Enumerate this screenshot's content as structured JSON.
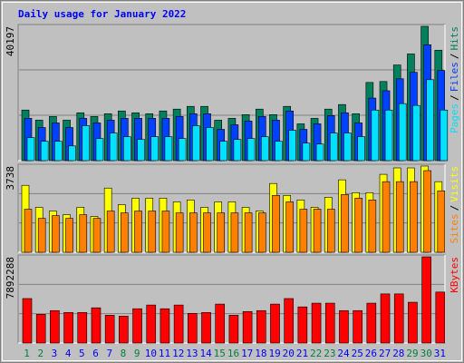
{
  "chart_data": [
    {
      "type": "bar",
      "title": "Daily usage for January 2022",
      "title_color": "#0000ff",
      "ylim": [
        0,
        40197
      ],
      "yticks": [
        40197
      ],
      "legend_separator": "/",
      "series": [
        {
          "name": "Pages",
          "color": "#00e0ff",
          "values": [
            6880,
            5780,
            5780,
            4400,
            10460,
            6610,
            8260,
            7160,
            6330,
            7160,
            7160,
            6610,
            10460,
            9910,
            5780,
            6330,
            6610,
            7160,
            5780,
            9080,
            5230,
            4960,
            8260,
            8260,
            7160,
            15140,
            15140,
            17070,
            16520,
            24230,
            15140
          ]
        },
        {
          "name": "Files",
          "color": "#0040ff",
          "values": [
            12660,
            9910,
            11290,
            9910,
            12660,
            11290,
            12110,
            12660,
            12660,
            12660,
            12660,
            13210,
            14040,
            14040,
            9360,
            10740,
            11840,
            13210,
            12110,
            14870,
            9360,
            11010,
            13490,
            14320,
            11290,
            18720,
            20920,
            24500,
            26430,
            34690,
            26980
          ]
        },
        {
          "name": "Hits",
          "color": "#00805c",
          "values": [
            15140,
            12110,
            13210,
            12110,
            14320,
            13210,
            14040,
            14870,
            14320,
            14040,
            14870,
            15420,
            16240,
            16240,
            12110,
            12660,
            13770,
            15420,
            13770,
            16240,
            11010,
            12660,
            15420,
            16790,
            14040,
            23400,
            23680,
            28630,
            31930,
            40197,
            33040
          ]
        }
      ]
    },
    {
      "type": "bar",
      "ylim": [
        0,
        3738
      ],
      "yticks": [
        3738
      ],
      "legend_separator": "/",
      "series": [
        {
          "name": "Sites",
          "color": "#ff8000",
          "values": [
            1869,
            1471,
            1591,
            1471,
            1631,
            1471,
            1790,
            1710,
            1790,
            1790,
            1790,
            1710,
            1710,
            1710,
            1710,
            1710,
            1710,
            1710,
            2466,
            2187,
            1869,
            1869,
            1869,
            2505,
            2346,
            2267,
            3062,
            3062,
            3062,
            3540,
            2665
          ]
        },
        {
          "name": "Visits",
          "color": "#ffff00",
          "values": [
            2903,
            1949,
            1790,
            1631,
            1949,
            1551,
            2784,
            2068,
            2346,
            2346,
            2346,
            2187,
            2267,
            1949,
            2187,
            2187,
            1949,
            1790,
            2983,
            2466,
            2267,
            1949,
            2386,
            3142,
            2585,
            2585,
            3380,
            3659,
            3659,
            3738,
            3062
          ]
        }
      ]
    },
    {
      "type": "bar",
      "ylim": [
        0,
        7892288
      ],
      "yticks": [
        7892288
      ],
      "categories": [
        "1",
        "2",
        "3",
        "4",
        "5",
        "6",
        "7",
        "8",
        "9",
        "10",
        "11",
        "12",
        "13",
        "14",
        "15",
        "16",
        "17",
        "18",
        "19",
        "20",
        "21",
        "22",
        "23",
        "24",
        "25",
        "26",
        "27",
        "28",
        "29",
        "30",
        "31"
      ],
      "category_color": "#0000ff",
      "weekend_color": "#008040",
      "weekend_indices": [
        0,
        1,
        7,
        8,
        14,
        15,
        21,
        22,
        28,
        29
      ],
      "series": [
        {
          "name": "KBytes",
          "color": "#ff0000",
          "values": [
            4073000,
            2631000,
            2970000,
            2800000,
            2800000,
            3225000,
            2546000,
            2461000,
            3140000,
            3479000,
            3140000,
            3479000,
            2716000,
            2800000,
            3564000,
            2546000,
            2885000,
            2970000,
            3564000,
            4073000,
            3310000,
            3649000,
            3649000,
            2970000,
            2970000,
            3649000,
            4498000,
            4498000,
            3734000,
            7892288,
            4667000
          ]
        }
      ]
    }
  ]
}
